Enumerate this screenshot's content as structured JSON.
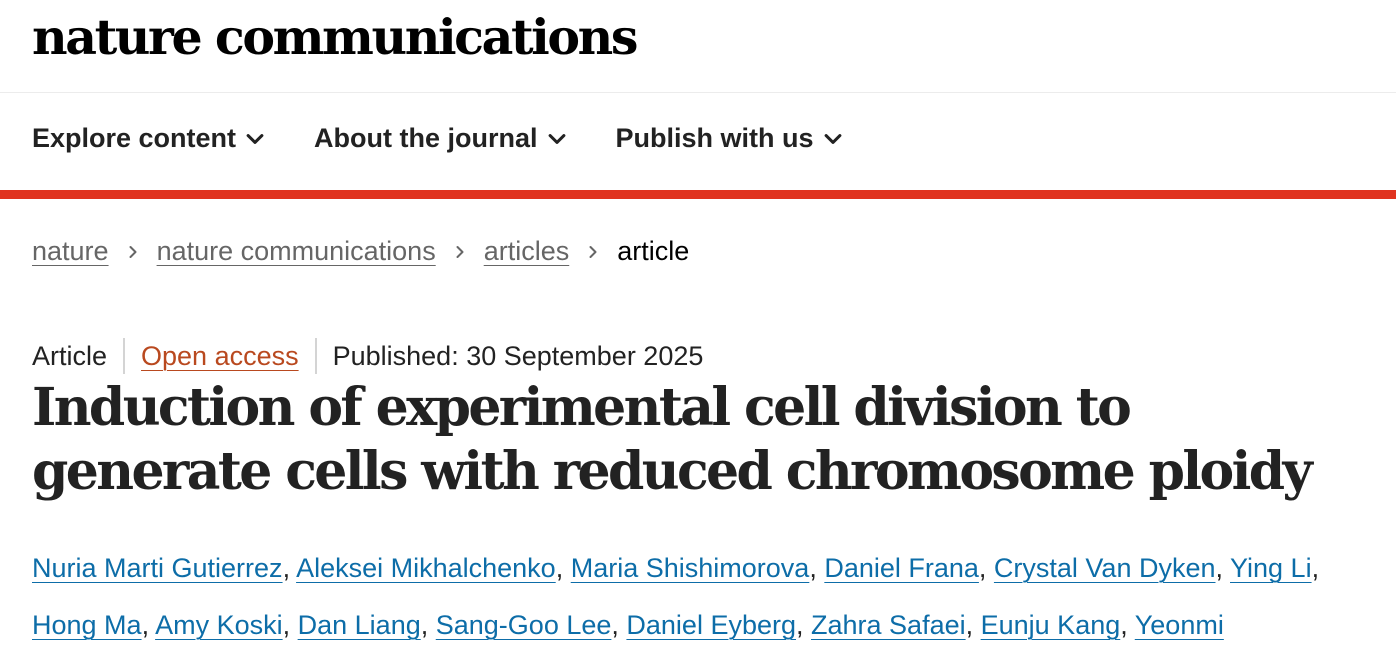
{
  "header": {
    "brand": "nature communications"
  },
  "nav": {
    "items": [
      {
        "label": "Explore content"
      },
      {
        "label": "About the journal"
      },
      {
        "label": "Publish with us"
      }
    ]
  },
  "breadcrumb": {
    "items": [
      "nature",
      "nature communications",
      "articles"
    ],
    "current": "article"
  },
  "article": {
    "type": "Article",
    "access": "Open access",
    "published": "Published: 30 September 2025",
    "title": "Induction of experimental cell division to generate cells with reduced chromosome ploidy",
    "authors": [
      "Nuria Marti Gutierrez",
      "Aleksei Mikhalchenko",
      "Maria Shishimorova",
      "Daniel Frana",
      "Crystal Van Dyken",
      "Ying Li",
      "Hong Ma",
      "Amy Koski",
      "Dan Liang",
      "Sang-Goo Lee",
      "Daniel Eyberg",
      "Zahra Safaei",
      "Eunju Kang",
      "Yeonmi"
    ]
  },
  "colors": {
    "accent_rule": "#e0331f",
    "open_access": "#b9491f",
    "author_link": "#0d6da8",
    "breadcrumb_link": "#666666"
  },
  "icons": {
    "nav_chevron": "chevron-down-icon",
    "breadcrumb_separator": "chevron-right-icon"
  }
}
